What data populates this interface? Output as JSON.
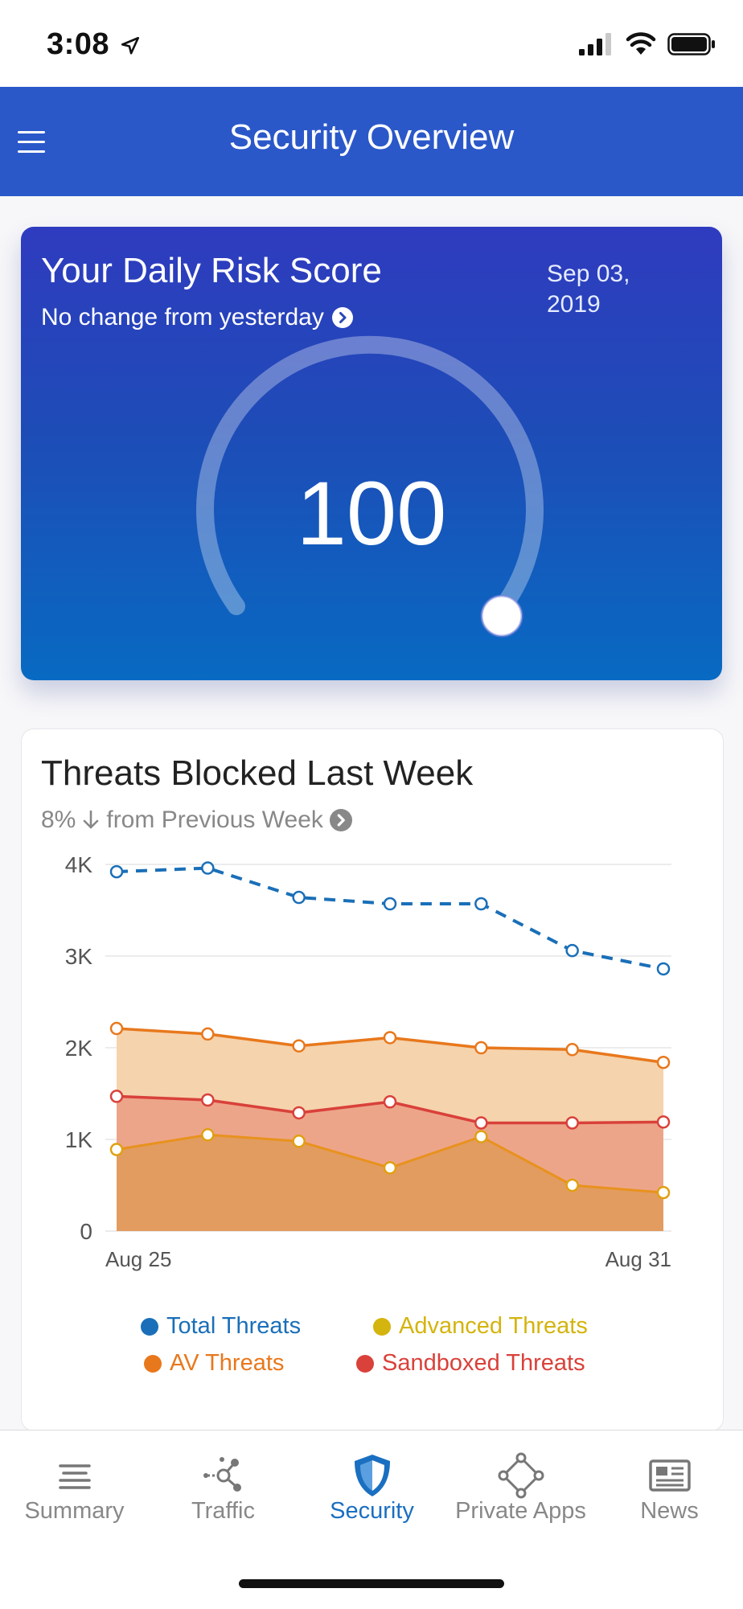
{
  "status_bar": {
    "time": "3:08"
  },
  "header": {
    "title": "Security Overview"
  },
  "risk_card": {
    "title": "Your Daily Risk Score",
    "subtitle": "No change from yesterday",
    "date": "Sep 03, 2019",
    "score": "100"
  },
  "threats_card": {
    "title": "Threats Blocked Last Week",
    "subtitle_pct": "8%",
    "subtitle_text": "from Previous Week"
  },
  "chart_data": {
    "type": "area",
    "title": "Threats Blocked Last Week",
    "x": [
      "Aug 25",
      "Aug 26",
      "Aug 27",
      "Aug 28",
      "Aug 29",
      "Aug 30",
      "Aug 31"
    ],
    "x_tick_labels": [
      "Aug 25",
      "Aug 31"
    ],
    "y_ticks": [
      "0",
      "1K",
      "2K",
      "3K",
      "4K"
    ],
    "ylim": [
      0,
      4000
    ],
    "grid": true,
    "legend_position": "bottom",
    "series": [
      {
        "name": "Total Threats",
        "color": "#1a6fb8",
        "style": "dashed-line",
        "values": [
          3920,
          3960,
          3640,
          3570,
          3570,
          3060,
          2860
        ]
      },
      {
        "name": "AV Threats",
        "color": "#e8781c",
        "style": "area",
        "values": [
          2210,
          2150,
          2020,
          2110,
          2000,
          1980,
          1840
        ]
      },
      {
        "name": "Sandboxed Threats",
        "color": "#d9413a",
        "style": "area",
        "values": [
          1470,
          1430,
          1290,
          1410,
          1180,
          1180,
          1190
        ]
      },
      {
        "name": "Advanced Threats",
        "color": "#e0a010",
        "style": "area",
        "values": [
          890,
          1050,
          980,
          690,
          1030,
          500,
          420
        ]
      }
    ]
  },
  "legend": {
    "items": [
      {
        "label": "Total Threats",
        "color": "#1a6fb8"
      },
      {
        "label": "Advanced Threats",
        "color": "#d4b40e"
      },
      {
        "label": "AV Threats",
        "color": "#e8781c"
      },
      {
        "label": "Sandboxed Threats",
        "color": "#d9413a"
      }
    ]
  },
  "bottom_nav": {
    "items": [
      {
        "label": "Summary",
        "icon": "summary-lines-icon"
      },
      {
        "label": "Traffic",
        "icon": "traffic-nodes-icon"
      },
      {
        "label": "Security",
        "icon": "shield-icon"
      },
      {
        "label": "Private Apps",
        "icon": "private-apps-icon"
      },
      {
        "label": "News",
        "icon": "newspaper-icon"
      }
    ],
    "active": "Security"
  }
}
